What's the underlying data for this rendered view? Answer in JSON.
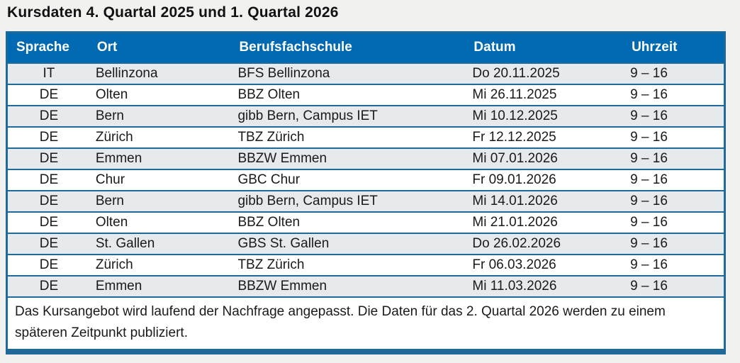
{
  "title": "Kursdaten 4. Quartal 2025 und 1. Quartal 2026",
  "table": {
    "columns": [
      "Sprache",
      "Ort",
      "Berufsfachschule",
      "Datum",
      "Uhrzeit"
    ],
    "column_keys": [
      "sprache",
      "ort",
      "berufsfachschule",
      "datum",
      "uhrzeit"
    ],
    "rows": [
      [
        "IT",
        "Bellinzona",
        "BFS Bellinzona",
        "Do 20.11.2025",
        "9 – 16"
      ],
      [
        "DE",
        "Olten",
        "BBZ Olten",
        "Mi 26.11.2025",
        "9 – 16"
      ],
      [
        "DE",
        "Bern",
        "gibb Bern, Campus IET",
        "Mi 10.12.2025",
        "9 – 16"
      ],
      [
        "DE",
        "Zürich",
        "TBZ Zürich",
        "Fr 12.12.2025",
        "9 – 16"
      ],
      [
        "DE",
        "Emmen",
        "BBZW Emmen",
        "Mi 07.01.2026",
        "9 – 16"
      ],
      [
        "DE",
        "Chur",
        "GBC Chur",
        "Fr 09.01.2026",
        "9 – 16"
      ],
      [
        "DE",
        "Bern",
        "gibb Bern, Campus IET",
        "Mi 14.01.2026",
        "9 – 16"
      ],
      [
        "DE",
        "Olten",
        "BBZ Olten",
        "Mi 21.01.2026",
        "9 – 16"
      ],
      [
        "DE",
        "St. Gallen",
        "GBS St. Gallen",
        "Do 26.02.2026",
        "9 – 16"
      ],
      [
        "DE",
        "Zürich",
        "TBZ Zürich",
        "Fr 06.03.2026",
        "9 – 16"
      ],
      [
        "DE",
        "Emmen",
        "BBZW Emmen",
        "Mi 11.03.2026",
        "9 – 16"
      ]
    ],
    "footer_note": "Das Kursangebot wird laufend der Nachfrage angepasst. Die Daten für das 2. Quartal 2026 werden zu einem späteren Zeitpunkt publiziert."
  },
  "colors": {
    "page_bg": "#f1f1ef",
    "header_bg": "#0069b1",
    "header_text": "#ffffff",
    "border": "#1f6a99",
    "row_alt_bg": "#e6eaed",
    "row_bg": "#ffffff",
    "text": "#1a1a1a"
  }
}
